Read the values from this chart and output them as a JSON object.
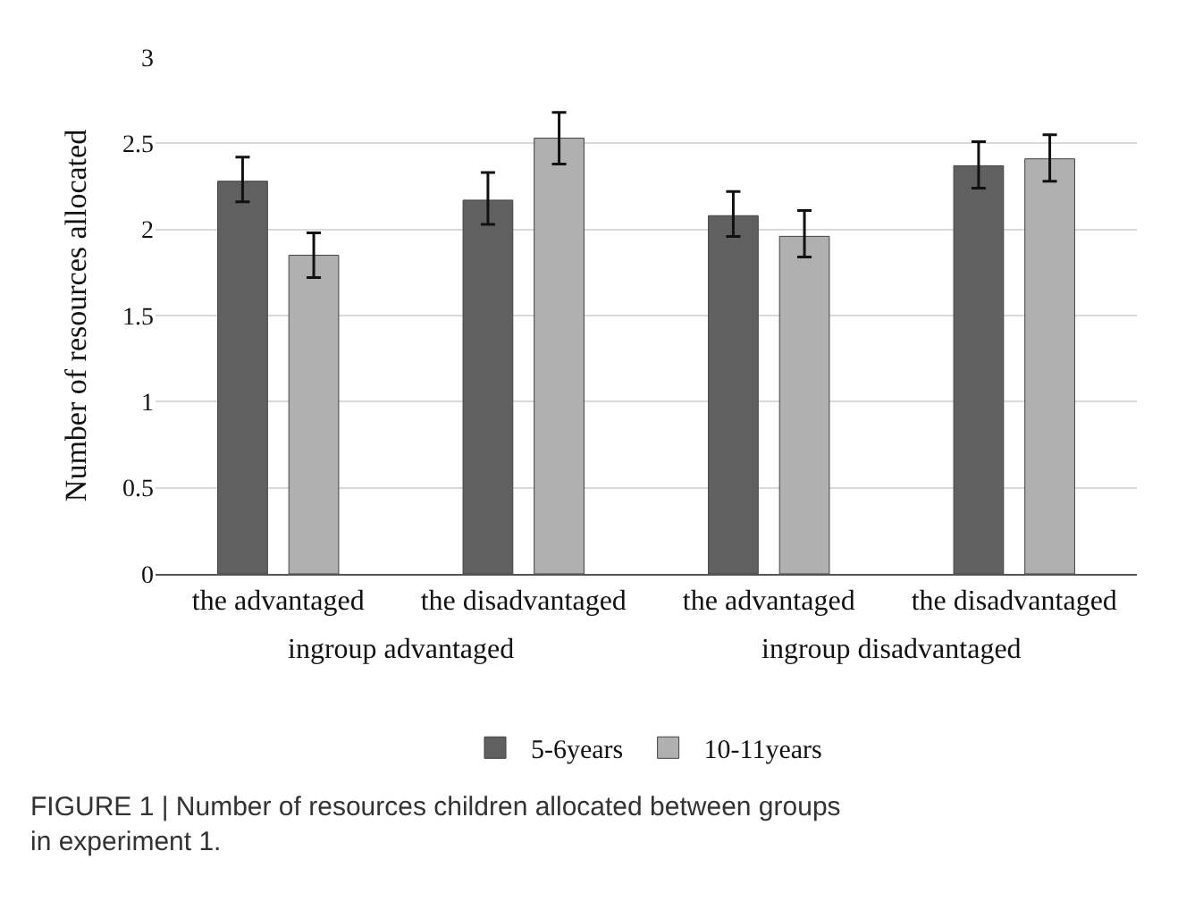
{
  "chart_data": {
    "type": "bar",
    "ylabel": "Number of resources allocated",
    "categories": [
      "the advantaged",
      "the disadvantaged",
      "the advantaged",
      "the disadvantaged"
    ],
    "series": [
      {
        "name": "5-6years",
        "color": "#606060",
        "values": [
          2.28,
          2.17,
          2.08,
          2.37
        ],
        "errors": [
          [
            2.16,
            2.42
          ],
          [
            2.03,
            2.33
          ],
          [
            1.96,
            2.22
          ],
          [
            2.24,
            2.51
          ]
        ]
      },
      {
        "name": "10-11years",
        "color": "#b0b0b0",
        "values": [
          1.85,
          2.53,
          1.96,
          2.41
        ],
        "errors": [
          [
            1.72,
            1.98
          ],
          [
            2.38,
            2.68
          ],
          [
            1.84,
            2.11
          ],
          [
            2.28,
            2.55
          ]
        ]
      }
    ],
    "ylim": [
      0,
      3
    ],
    "yticks": [
      0,
      0.5,
      1,
      1.5,
      2,
      2.5,
      3
    ],
    "grid": "y",
    "legend": "bottom",
    "annotations": [
      "ingroup advantaged",
      "ingroup disadvantaged",
      "FIGURE 1 | Number of resources children allocated between groups in experiment 1."
    ]
  }
}
